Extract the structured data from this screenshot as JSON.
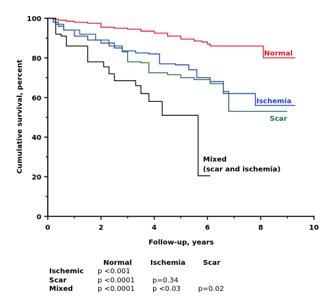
{
  "chart_data": {
    "type": "line",
    "step": true,
    "xlabel": "Follow-up, years",
    "ylabel": "Cumulative survival, percent",
    "xlim": [
      0,
      10
    ],
    "ylim": [
      0,
      100
    ],
    "xticks": [
      "0",
      "2",
      "4",
      "6",
      "8",
      "10"
    ],
    "yticks": [
      "0",
      "20",
      "40",
      "60",
      "80",
      "100"
    ],
    "grid": false,
    "series": [
      {
        "name": "Normal",
        "color": "#e8141e",
        "x": [
          0,
          0.2,
          0.4,
          0.7,
          1.0,
          1.5,
          2.0,
          2.5,
          3.0,
          3.5,
          4.0,
          4.5,
          5.0,
          5.5,
          5.8,
          6.0,
          6.1,
          8.05,
          8.1,
          9.3
        ],
        "y": [
          100,
          99.5,
          99,
          98.5,
          98,
          97.5,
          95.5,
          95,
          94.5,
          93.5,
          92.5,
          91,
          89.5,
          88.5,
          88,
          87,
          86,
          86,
          80,
          80
        ]
      },
      {
        "name": "Ischemia",
        "color": "#1f3fcf",
        "x": [
          0,
          0.2,
          0.4,
          0.6,
          1.0,
          1.5,
          2.0,
          2.5,
          2.8,
          3.3,
          3.8,
          4.2,
          4.8,
          5.3,
          5.6,
          6.1,
          6.6,
          6.9,
          7.8,
          9.3
        ],
        "y": [
          100,
          98,
          96,
          94,
          91,
          89,
          87.5,
          85,
          83.5,
          82.5,
          82,
          77,
          76.5,
          74,
          70,
          68,
          62,
          62,
          56,
          56
        ]
      },
      {
        "name": "Scar",
        "color": "#17704a",
        "x": [
          0,
          0.3,
          0.6,
          1.2,
          1.8,
          2.3,
          2.8,
          3.0,
          3.5,
          3.8,
          4.5,
          5.0,
          5.5,
          6.1,
          6.6,
          6.8,
          9.0
        ],
        "y": [
          100,
          97,
          94,
          92,
          89,
          86,
          83,
          78,
          77.5,
          72.5,
          71.5,
          70,
          69,
          67,
          63,
          53,
          53
        ]
      },
      {
        "name": "Mixed\n(scar and ischemia)",
        "color": "#111111",
        "x": [
          0,
          0.3,
          0.5,
          0.7,
          1.0,
          1.5,
          2.1,
          2.3,
          2.5,
          3.3,
          3.5,
          3.8,
          4.0,
          4.3,
          5.65,
          6.1
        ],
        "y": [
          100,
          92,
          91,
          86,
          86,
          78,
          75.5,
          72,
          68.5,
          66,
          62,
          58,
          58,
          51,
          20.5,
          20.5
        ]
      }
    ],
    "labels": {
      "normal": "Normal",
      "ischemia": "Ischemia",
      "scar": "Scar",
      "mixed_line1": "Mixed",
      "mixed_line2": "(scar and ischemia)"
    }
  },
  "pvalues": {
    "col_headers": [
      "Normal",
      "Ischemia",
      "Scar"
    ],
    "rows": [
      {
        "label": "Ischemic",
        "values": [
          "p <0.001",
          "",
          ""
        ]
      },
      {
        "label": "Scar",
        "values": [
          "p <0.0001",
          "p=0.34",
          ""
        ]
      },
      {
        "label": "Mixed",
        "values": [
          "p <0.0001",
          "p <0.03",
          "p=0.02"
        ]
      }
    ]
  }
}
